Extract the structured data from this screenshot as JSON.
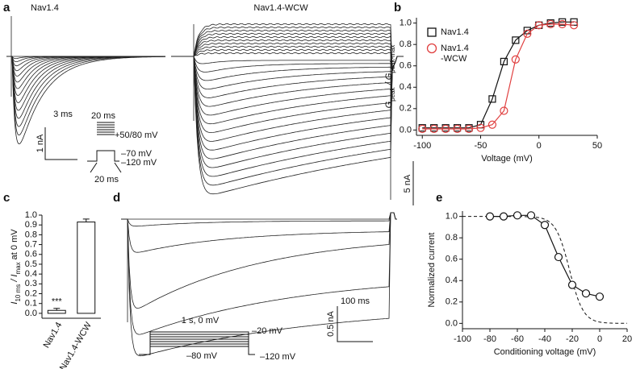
{
  "figure": {
    "a": {
      "letter": "a",
      "left_title": "Nav1.4",
      "right_title": "Nav1.4-WCW",
      "time_scale": "3 ms",
      "current_scale": "1 nA",
      "protocol_top": "20 ms",
      "protocol_step": "+50/80 mV",
      "protocol_hold": "–70 mV",
      "protocol_base": "–120 mV",
      "protocol_bottom": "20 ms",
      "right_scale": "5 nA"
    },
    "b": {
      "letter": "b"
    },
    "c": {
      "letter": "c"
    },
    "d": {
      "letter": "d",
      "time_scale": "100 ms",
      "current_scale": "0.5 nA",
      "protocol_top": "1 s, 0 mV",
      "protocol_step": "–20 mV",
      "protocol_hold": "–80 mV",
      "protocol_base": "–120 mV"
    },
    "e": {
      "letter": "e"
    }
  },
  "chart_data": [
    {
      "type": "scatter",
      "ylabel_main": "G",
      "ylabel_sub1": "peak",
      "ylabel_mid": " / G",
      "ylabel_sub2": "peak-max",
      "xlabel": "Voltage (mV)",
      "xlim": [
        -105,
        50
      ],
      "xticks": [
        -100,
        -50,
        0,
        50
      ],
      "ylim": [
        -0.05,
        1.05
      ],
      "yticks": [
        {
          "value": 0,
          "label": "0.0"
        },
        {
          "value": 0.2,
          "label": "0.2"
        },
        {
          "value": 0.4,
          "label": "0.4"
        },
        {
          "value": 0.6,
          "label": "0.6"
        },
        {
          "value": 0.8,
          "label": "0.8"
        },
        {
          "value": 1,
          "label": "1.0"
        }
      ],
      "x": [
        -100,
        -90,
        -80,
        -70,
        -60,
        -50,
        -40,
        -30,
        -20,
        -10,
        0,
        10,
        20,
        30
      ],
      "series": [
        {
          "name": "Nav1.4",
          "legend_line2": "",
          "color": "#111111",
          "marker": "square",
          "values": [
            0.02,
            0.02,
            0.02,
            0.02,
            0.02,
            0.05,
            0.29,
            0.64,
            0.84,
            0.93,
            0.98,
            1.0,
            1.01,
            1.01
          ]
        },
        {
          "name": "Nav1.4",
          "legend_line2": "-WCW",
          "color": "#e04040",
          "marker": "circle",
          "values": [
            0.01,
            0.01,
            0.01,
            0.01,
            0.01,
            0.02,
            0.05,
            0.18,
            0.66,
            0.9,
            0.98,
            0.99,
            0.99,
            0.98
          ]
        }
      ]
    },
    {
      "type": "bar",
      "ylabel_i1": "I",
      "ylabel_sub1": "10 ms",
      "ylabel_mid": " / I",
      "ylabel_sub2": "max",
      "ylabel_end": " at 0 mV",
      "categories": [
        "Nav1.4",
        "Nav1.4-WCW"
      ],
      "values": [
        0.03,
        0.93
      ],
      "errors": [
        0.02,
        0.03
      ],
      "annotation": "***",
      "color": "#ffffff",
      "ylim": [
        -0.05,
        1.0
      ],
      "yticks": [
        {
          "value": 0,
          "label": "0.0"
        },
        {
          "value": 0.1,
          "label": "0.1"
        },
        {
          "value": 0.2,
          "label": "0.2"
        },
        {
          "value": 0.3,
          "label": "0.3"
        },
        {
          "value": 0.4,
          "label": "0.4"
        },
        {
          "value": 0.5,
          "label": "0.5"
        },
        {
          "value": 0.6,
          "label": "0.6"
        },
        {
          "value": 0.7,
          "label": "0.7"
        },
        {
          "value": 0.8,
          "label": "0.8"
        },
        {
          "value": 0.9,
          "label": "0.9"
        },
        {
          "value": 1,
          "label": "1.0"
        }
      ]
    },
    {
      "type": "line",
      "ylabel": "Normalized current",
      "xlabel": "Conditioning voltage (mV)",
      "xlim": [
        -100,
        20
      ],
      "xticks": [
        -100,
        -80,
        -60,
        -40,
        -20,
        0,
        20
      ],
      "ylim": [
        -0.05,
        1.05
      ],
      "yticks": [
        {
          "value": 0,
          "label": "0.0"
        },
        {
          "value": 0.2,
          "label": "0.2"
        },
        {
          "value": 0.4,
          "label": "0.4"
        },
        {
          "value": 0.6,
          "label": "0.6"
        },
        {
          "value": 0.8,
          "label": "0.8"
        },
        {
          "value": 1,
          "label": "1.0"
        }
      ],
      "x": [
        -80,
        -70,
        -60,
        -50,
        -40,
        -30,
        -20,
        -10,
        0
      ],
      "series": [
        {
          "name": "Nav1.4-WCW",
          "color": "#111111",
          "values": [
            1.0,
            1.0,
            1.01,
            1.01,
            0.92,
            0.62,
            0.36,
            0.28,
            0.25
          ]
        }
      ]
    }
  ]
}
